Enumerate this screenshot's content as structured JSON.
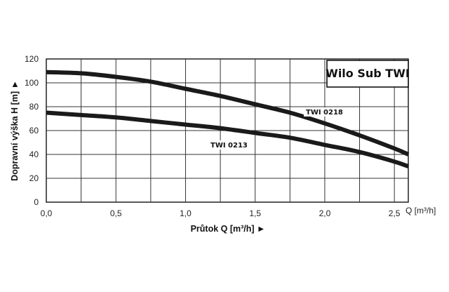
{
  "chart_data": {
    "type": "line",
    "title": "Wilo Sub TWI",
    "xlabel": "Průtok Q [m³/h] ►",
    "ylabel": "Dopravní výška H [m] ►",
    "x_unit_label": "Q [m³/h]",
    "xlim": [
      0,
      2.6
    ],
    "ylim": [
      0,
      120
    ],
    "x_ticks": [
      "0,0",
      "0,5",
      "1,0",
      "1,5",
      "2,0",
      "2,5"
    ],
    "y_ticks": [
      "0",
      "20",
      "40",
      "60",
      "80",
      "100",
      "120"
    ],
    "grid": true,
    "legend_position": "top-right",
    "series": [
      {
        "name": "TWI 0218",
        "x": [
          0.0,
          0.25,
          0.5,
          0.75,
          1.0,
          1.25,
          1.5,
          1.75,
          2.0,
          2.25,
          2.5,
          2.6
        ],
        "y": [
          109,
          108,
          105,
          101,
          95,
          89,
          82,
          75,
          66,
          56,
          45,
          40
        ]
      },
      {
        "name": "TWI 0213",
        "x": [
          0.0,
          0.25,
          0.5,
          0.75,
          1.0,
          1.25,
          1.5,
          1.75,
          2.0,
          2.25,
          2.5,
          2.6
        ],
        "y": [
          75,
          73,
          71,
          68,
          65,
          62,
          58,
          54,
          48,
          42,
          34,
          30
        ]
      }
    ]
  }
}
